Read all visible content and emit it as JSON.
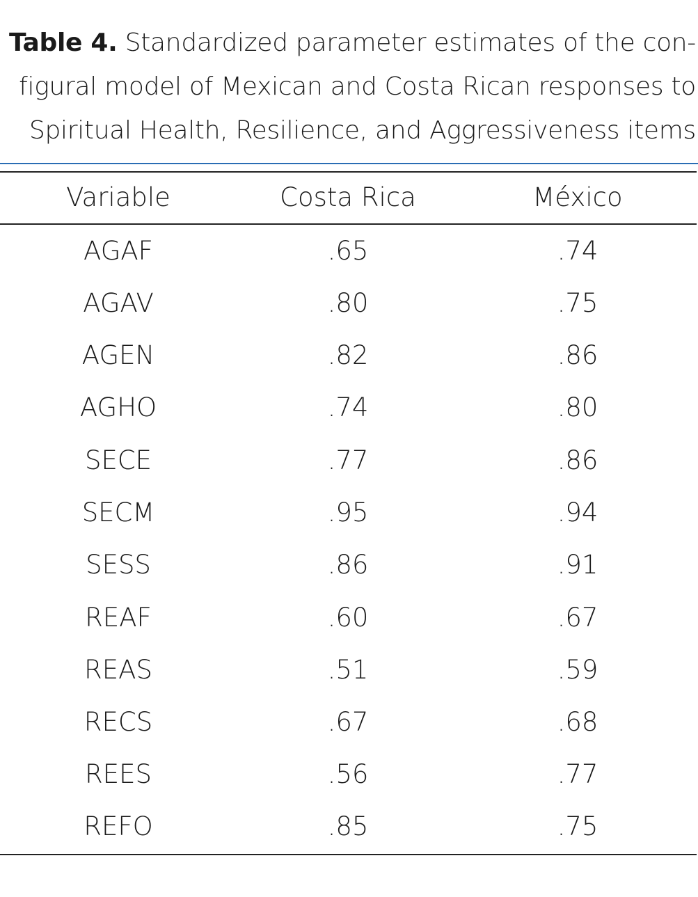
{
  "caption": {
    "label": "Table 4.",
    "line1": " Standardized parameter estimates of the con-",
    "line2": "figural model of Mexican and Costa Rican responses to",
    "line3": "Spiritual Health, Resilience, and Aggressiveness items"
  },
  "table": {
    "headers": [
      "Variable",
      "Costa Rica",
      "México"
    ],
    "rows": [
      [
        "AGAF",
        ".65",
        ".74"
      ],
      [
        "AGAV",
        ".80",
        ".75"
      ],
      [
        "AGEN",
        ".82",
        ".86"
      ],
      [
        "AGHO",
        ".74",
        ".80"
      ],
      [
        "SECE",
        ".77",
        ".86"
      ],
      [
        "SECM",
        ".95",
        ".94"
      ],
      [
        "SESS",
        ".86",
        ".91"
      ],
      [
        "REAF",
        ".60",
        ".67"
      ],
      [
        "REAS",
        ".51",
        ".59"
      ],
      [
        "RECS",
        ".67",
        ".68"
      ],
      [
        "REES",
        ".56",
        ".77"
      ],
      [
        "REFO",
        ".85",
        ".75"
      ]
    ]
  },
  "colors": {
    "accent_rule": "#2a6db4",
    "text": "#1a1a1a"
  }
}
